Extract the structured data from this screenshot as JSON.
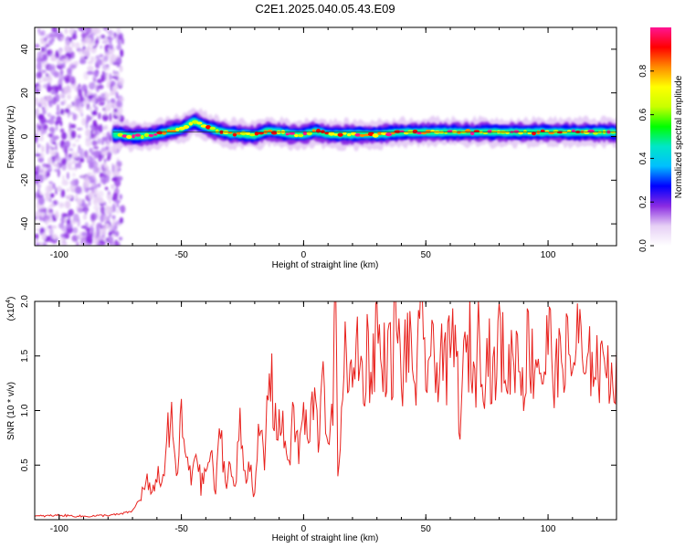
{
  "figure": {
    "title": "C2E1.2025.040.05.43.E09"
  },
  "chart_data": [
    {
      "type": "heatmap",
      "xlabel": "Height of straight line (km)",
      "ylabel": "Frequency (Hz)",
      "xlim": [
        -110,
        128
      ],
      "ylim": [
        -50,
        50
      ],
      "xticks": [
        -100,
        -50,
        0,
        50,
        100
      ],
      "yticks": [
        -40,
        -20,
        0,
        20,
        40
      ],
      "colorbar": {
        "label": "Normalized spectral amplitude",
        "range": [
          0,
          1
        ],
        "ticks": [
          "0.0",
          "0.2",
          "0.4",
          "0.6",
          "0.8"
        ],
        "colors": [
          "#ffffff",
          "#e6cff5",
          "#8a2be2",
          "#0000ff",
          "#00bfff",
          "#00e6c8",
          "#00ff00",
          "#c8ff00",
          "#ffff00",
          "#ff8c00",
          "#ff0000",
          "#ff1493"
        ]
      },
      "ridge": {
        "x": [
          -75,
          -70,
          -65,
          -60,
          -55,
          -50,
          -45,
          -40,
          -35,
          -30,
          -25,
          -20,
          -15,
          -10,
          -5,
          0,
          5,
          10,
          20,
          30,
          40,
          50,
          60,
          70,
          80,
          90,
          100,
          110,
          120,
          128
        ],
        "y": [
          1.0,
          0.0,
          0.5,
          1.0,
          2.5,
          3.5,
          7.0,
          4.5,
          2.5,
          1.5,
          1.0,
          0.5,
          2.5,
          2.0,
          1.0,
          1.0,
          2.5,
          1.0,
          1.0,
          1.0,
          2.0,
          2.0,
          2.0,
          2.0,
          2.0,
          2.0,
          2.0,
          2.0,
          2.0,
          2.0
        ]
      }
    },
    {
      "type": "line",
      "xlabel": "Height of straight line (km)",
      "ylabel": "SNR (10 * v/v)",
      "y_multiplier": "(x10",
      "y_multiplier_exp": "4",
      "y_multiplier_close": ")",
      "xlim": [
        -110,
        128
      ],
      "ylim": [
        0,
        2.0
      ],
      "xticks": [
        -100,
        -50,
        0,
        50,
        100
      ],
      "yticks": [
        "0.5",
        "1.0",
        "1.5",
        "2.0"
      ],
      "series": [
        {
          "color": "#e8211d",
          "x": [
            -110,
            -100,
            -90,
            -80,
            -75,
            -70,
            -68,
            -66,
            -64,
            -62,
            -60,
            -58,
            -56,
            -54,
            -52,
            -50,
            -48,
            -46,
            -44,
            -42,
            -40,
            -38,
            -36,
            -34,
            -32,
            -30,
            -28,
            -26,
            -24,
            -22,
            -20,
            -18,
            -16,
            -14,
            -12,
            -10,
            -8,
            -6,
            -4,
            -2,
            0,
            2,
            4,
            6,
            8,
            10,
            12,
            13,
            14,
            16,
            18,
            20,
            22,
            24,
            26,
            28,
            30,
            32,
            34,
            36,
            38,
            40,
            42,
            44,
            46,
            48,
            50,
            52,
            54,
            56,
            58,
            60,
            62,
            64,
            66,
            68,
            70,
            72,
            74,
            76,
            78,
            80,
            82,
            84,
            86,
            88,
            90,
            92,
            94,
            96,
            98,
            100,
            102,
            104,
            106,
            108,
            110,
            112,
            114,
            116,
            118,
            120,
            122,
            124,
            126,
            128
          ],
          "y": [
            0.03,
            0.04,
            0.03,
            0.04,
            0.05,
            0.08,
            0.15,
            0.25,
            0.35,
            0.2,
            0.45,
            0.3,
            0.75,
            0.85,
            0.4,
            0.9,
            0.55,
            0.35,
            0.7,
            0.3,
            0.45,
            0.6,
            0.25,
            0.85,
            0.35,
            0.5,
            0.25,
            0.9,
            0.4,
            0.55,
            0.2,
            0.85,
            0.5,
            1.45,
            0.95,
            0.9,
            0.75,
            0.55,
            0.95,
            0.6,
            1.0,
            0.65,
            1.15,
            0.75,
            1.55,
            0.55,
            1.05,
            2.0,
            0.42,
            1.3,
            1.55,
            1.1,
            1.7,
            1.25,
            1.55,
            1.35,
            1.85,
            1.3,
            1.6,
            1.4,
            1.9,
            1.2,
            1.65,
            1.45,
            1.3,
            1.75,
            1.4,
            1.55,
            1.25,
            1.7,
            1.35,
            1.5,
            1.65,
            0.9,
            1.45,
            1.6,
            1.3,
            1.75,
            1.4,
            1.55,
            1.25,
            1.7,
            1.45,
            1.35,
            1.6,
            1.5,
            1.3,
            1.65,
            1.4,
            1.55,
            1.25,
            1.7,
            1.45,
            1.3,
            1.6,
            1.5,
            1.35,
            1.8,
            1.4,
            1.2,
            1.6,
            1.45,
            1.3,
            1.7,
            1.2,
            1.55
          ]
        }
      ]
    }
  ]
}
